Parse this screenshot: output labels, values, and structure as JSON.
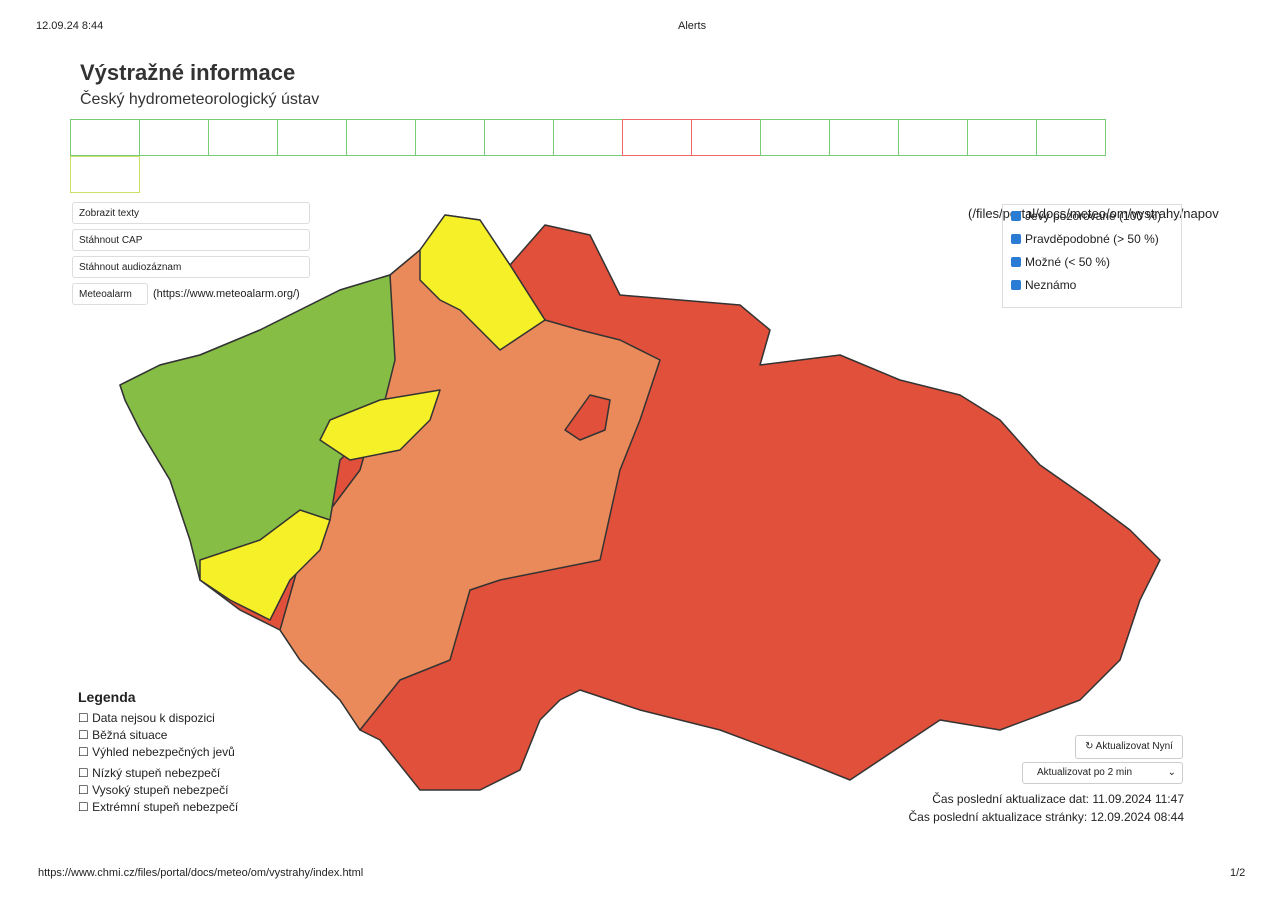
{
  "header": {
    "date": "12.09.24 8:44",
    "tab_title": "Alerts"
  },
  "page": {
    "title": "Výstražné informace",
    "subtitle": "Český hydrometeorologický ústav"
  },
  "buttons": [
    "Zobrazit texty",
    "Stáhnout CAP",
    "Stáhnout audiozáznam",
    "Meteoalarm"
  ],
  "meteoalarm_link": "(https://www.meteoalarm.org/)",
  "filter_link": "(/files/portal/docs/meteo/om/vystrahy/napov",
  "filters": [
    "Jevy pozorované (100 %)",
    "Pravděpodobné (> 50 %)",
    "Možné (< 50 %)",
    "Neznámo"
  ],
  "legend": {
    "title": "Legenda",
    "items": [
      "Data nejsou k dispozici",
      "Běžná situace",
      "Výhled nebezpečných jevů",
      "Nízký stupeň nebezpečí",
      "Vysoký stupeň nebezpečí",
      "Extrémní stupeň nebezpečí"
    ]
  },
  "controls": {
    "refresh": "Aktualizovat Nyní",
    "interval": "Aktualizovat po 2 min"
  },
  "updates": {
    "data": "Čas poslední aktualizace dat: 11.09.2024 11:47",
    "page": "Čas poslední aktualizace stránky: 12.09.2024 08:44"
  },
  "footer": {
    "url": "https://www.chmi.cz/files/portal/docs/meteo/om/vystrahy/index.html",
    "page_number": "1/2"
  }
}
